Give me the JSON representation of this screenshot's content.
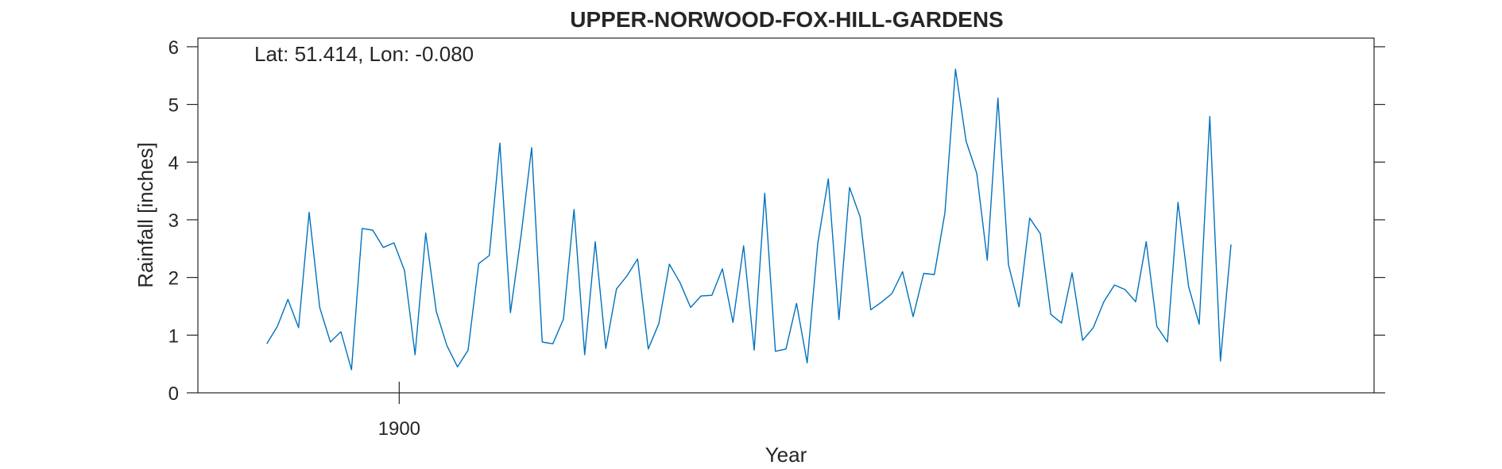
{
  "chart_data": {
    "type": "line",
    "title": "UPPER-NORWOOD-FOX-HILL-GARDENS",
    "annotation": "Lat: 51.414, Lon: -0.080",
    "xlabel": "Year",
    "ylabel": "Rainfall [inches]",
    "xlim": [
      1881,
      1992
    ],
    "ylim": [
      0,
      6.15
    ],
    "xticks": [
      1900
    ],
    "xtick_labels": [
      "1900"
    ],
    "yticks": [
      0,
      1,
      2,
      3,
      4,
      5,
      6
    ],
    "ytick_labels": [
      "0",
      "1",
      "2",
      "3",
      "4",
      "5",
      "6"
    ],
    "grid": false,
    "line_color": "#0072BD",
    "series": [
      {
        "x_start": 1887.5,
        "x_step": 1,
        "values": [
          0.85,
          1.15,
          1.62,
          1.13,
          3.13,
          1.48,
          0.88,
          1.06,
          0.4,
          2.85,
          2.82,
          2.52,
          2.6,
          2.12,
          0.66,
          2.77,
          1.41,
          0.82,
          0.45,
          0.74,
          2.24,
          2.38,
          4.33,
          1.39,
          2.73,
          4.25,
          0.88,
          0.85,
          1.28,
          3.18,
          0.66,
          2.62,
          0.77,
          1.8,
          2.03,
          2.32,
          0.76,
          1.2,
          2.23,
          1.91,
          1.48,
          1.68,
          1.69,
          2.15,
          1.22,
          2.55,
          0.74,
          3.46,
          0.72,
          0.76,
          1.55,
          0.52,
          2.59,
          3.71,
          1.27,
          3.56,
          3.05,
          1.44,
          1.57,
          1.72,
          2.1,
          1.32,
          2.07,
          2.05,
          3.12,
          5.61,
          4.36,
          3.81,
          2.3,
          5.11,
          2.22,
          1.49,
          3.03,
          2.76,
          1.36,
          1.21,
          2.08,
          0.91,
          1.13,
          1.58,
          1.87,
          1.79,
          1.58,
          2.62,
          1.15,
          0.88,
          3.3,
          1.84,
          1.19,
          4.79,
          0.55,
          2.57
        ]
      }
    ]
  }
}
